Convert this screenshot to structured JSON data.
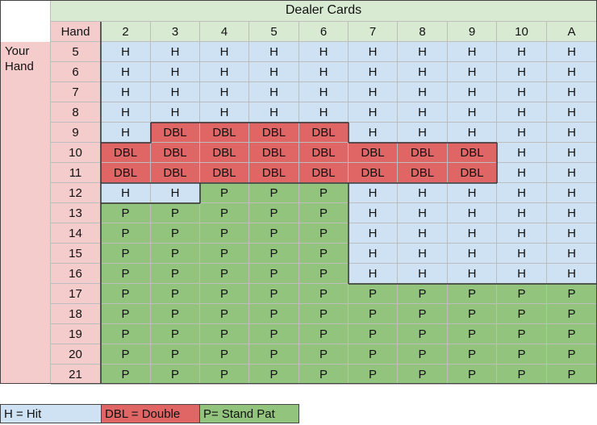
{
  "header": {
    "dealer_title": "Dealer Cards",
    "hand_label": "Hand",
    "your_hand_label": "Your\nHand",
    "dealer_cards": [
      "2",
      "3",
      "4",
      "5",
      "6",
      "7",
      "8",
      "9",
      "10",
      "A"
    ]
  },
  "rows": [
    {
      "hand": "5",
      "cells": [
        "H",
        "H",
        "H",
        "H",
        "H",
        "H",
        "H",
        "H",
        "H",
        "H"
      ]
    },
    {
      "hand": "6",
      "cells": [
        "H",
        "H",
        "H",
        "H",
        "H",
        "H",
        "H",
        "H",
        "H",
        "H"
      ]
    },
    {
      "hand": "7",
      "cells": [
        "H",
        "H",
        "H",
        "H",
        "H",
        "H",
        "H",
        "H",
        "H",
        "H"
      ]
    },
    {
      "hand": "8",
      "cells": [
        "H",
        "H",
        "H",
        "H",
        "H",
        "H",
        "H",
        "H",
        "H",
        "H"
      ]
    },
    {
      "hand": "9",
      "cells": [
        "H",
        "DBL",
        "DBL",
        "DBL",
        "DBL",
        "H",
        "H",
        "H",
        "H",
        "H"
      ]
    },
    {
      "hand": "10",
      "cells": [
        "DBL",
        "DBL",
        "DBL",
        "DBL",
        "DBL",
        "DBL",
        "DBL",
        "DBL",
        "H",
        "H"
      ]
    },
    {
      "hand": "11",
      "cells": [
        "DBL",
        "DBL",
        "DBL",
        "DBL",
        "DBL",
        "DBL",
        "DBL",
        "DBL",
        "H",
        "H"
      ]
    },
    {
      "hand": "12",
      "cells": [
        "H",
        "H",
        "P",
        "P",
        "P",
        "H",
        "H",
        "H",
        "H",
        "H"
      ]
    },
    {
      "hand": "13",
      "cells": [
        "P",
        "P",
        "P",
        "P",
        "P",
        "H",
        "H",
        "H",
        "H",
        "H"
      ]
    },
    {
      "hand": "14",
      "cells": [
        "P",
        "P",
        "P",
        "P",
        "P",
        "H",
        "H",
        "H",
        "H",
        "H"
      ]
    },
    {
      "hand": "15",
      "cells": [
        "P",
        "P",
        "P",
        "P",
        "P",
        "H",
        "H",
        "H",
        "H",
        "H"
      ]
    },
    {
      "hand": "16",
      "cells": [
        "P",
        "P",
        "P",
        "P",
        "P",
        "H",
        "H",
        "H",
        "H",
        "H"
      ]
    },
    {
      "hand": "17",
      "cells": [
        "P",
        "P",
        "P",
        "P",
        "P",
        "P",
        "P",
        "P",
        "P",
        "P"
      ]
    },
    {
      "hand": "18",
      "cells": [
        "P",
        "P",
        "P",
        "P",
        "P",
        "P",
        "P",
        "P",
        "P",
        "P"
      ]
    },
    {
      "hand": "19",
      "cells": [
        "P",
        "P",
        "P",
        "P",
        "P",
        "P",
        "P",
        "P",
        "P",
        "P"
      ]
    },
    {
      "hand": "20",
      "cells": [
        "P",
        "P",
        "P",
        "P",
        "P",
        "P",
        "P",
        "P",
        "P",
        "P"
      ]
    },
    {
      "hand": "21",
      "cells": [
        "P",
        "P",
        "P",
        "P",
        "P",
        "P",
        "P",
        "P",
        "P",
        "P"
      ]
    }
  ],
  "legend": {
    "hit": "H = Hit",
    "double": "DBL = Double",
    "stand": "P= Stand Pat"
  },
  "colors": {
    "hit": "#cfe2f3",
    "double": "#e06666",
    "stand": "#93c47d",
    "header_green": "#d9ead3",
    "hand_pink": "#f4cccc"
  }
}
